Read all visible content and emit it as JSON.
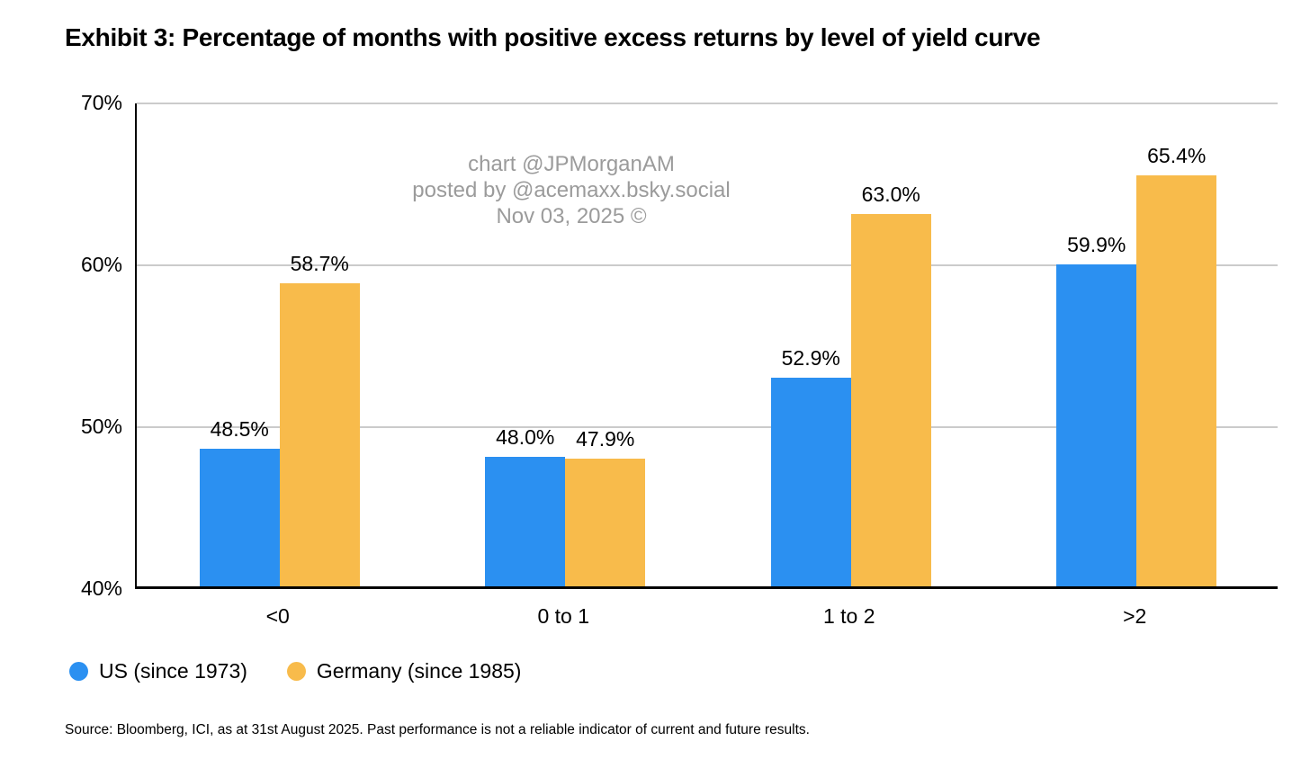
{
  "title": "Exhibit 3: Percentage of months with positive excess returns by level of yield curve",
  "watermark": {
    "line1": "chart @JPMorganAM",
    "line2": "posted by @acemaxx.bsky.social",
    "line3": "Nov 03, 2025 ©"
  },
  "source": "Source: Bloomberg, ICI, as at 31st August 2025. Past performance is not a reliable indicator of current and future results.",
  "colors": {
    "us": "#2b90f1",
    "germany": "#f8bb4b",
    "gridline": "#cbcbcb",
    "axis": "#000000",
    "watermark": "#9b9b9b"
  },
  "chart_data": {
    "type": "bar",
    "title": "Exhibit 3: Percentage of months with positive excess returns by level of yield curve",
    "categories": [
      "<0",
      "0 to 1",
      "1 to 2",
      ">2"
    ],
    "series": [
      {
        "name": "US (since 1973)",
        "color_key": "us",
        "values": [
          48.5,
          48.0,
          52.9,
          59.9
        ]
      },
      {
        "name": "Germany (since 1985)",
        "color_key": "germany",
        "values": [
          58.7,
          47.9,
          63.0,
          65.4
        ]
      }
    ],
    "xlabel": "",
    "ylabel": "",
    "ylim": [
      40,
      70
    ],
    "yticks": [
      "70%",
      "60%",
      "50%",
      "40%"
    ],
    "ytick_values": [
      70,
      60,
      50,
      40
    ],
    "grid": true,
    "value_label_suffix": "%",
    "legend_position": "bottom-left"
  },
  "legend": {
    "items": [
      {
        "label": "US (since 1973)",
        "color_key": "us"
      },
      {
        "label": "Germany (since 1985)",
        "color_key": "germany"
      }
    ]
  }
}
